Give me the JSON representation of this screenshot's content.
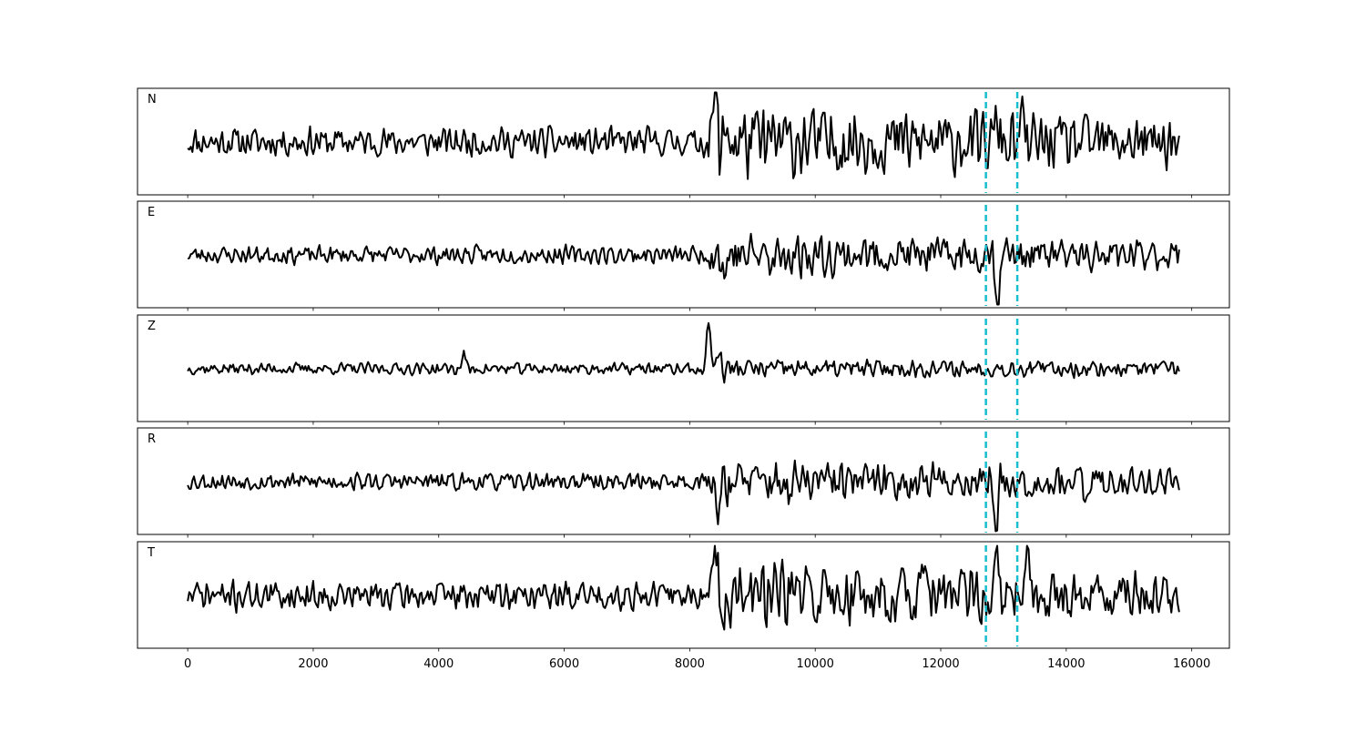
{
  "chart_data": {
    "type": "line",
    "panels": [
      {
        "label": "N",
        "seed": 11,
        "base_amp": 0.2,
        "burst_amp": 0.8,
        "ylim": [
          -1,
          1
        ],
        "events": [
          {
            "x": 8400,
            "amp": 1.0
          },
          {
            "x": 8600,
            "amp": 0.4
          },
          {
            "x": 12900,
            "amp": 0.45
          },
          {
            "x": 13300,
            "amp": 0.4
          }
        ]
      },
      {
        "label": "E",
        "seed": 23,
        "base_amp": 0.12,
        "burst_amp": 0.45,
        "ylim": [
          -1,
          1
        ],
        "events": [
          {
            "x": 8550,
            "amp": 0.45
          },
          {
            "x": 9300,
            "amp": 0.35
          },
          {
            "x": 12900,
            "amp": 1.0
          },
          {
            "x": 14400,
            "amp": 0.4
          }
        ]
      },
      {
        "label": "Z",
        "seed": 37,
        "base_amp": 0.08,
        "burst_amp": 0.18,
        "ylim": [
          -1,
          1
        ],
        "events": [
          {
            "x": 4400,
            "amp": 0.3
          },
          {
            "x": 8300,
            "amp": 1.0
          },
          {
            "x": 8450,
            "amp": 0.45
          }
        ]
      },
      {
        "label": "R",
        "seed": 53,
        "base_amp": 0.12,
        "burst_amp": 0.45,
        "ylim": [
          -1,
          1
        ],
        "events": [
          {
            "x": 8450,
            "amp": 0.5
          },
          {
            "x": 9600,
            "amp": 0.4
          },
          {
            "x": 12880,
            "amp": 1.0
          },
          {
            "x": 14300,
            "amp": 0.45
          }
        ]
      },
      {
        "label": "T",
        "seed": 71,
        "base_amp": 0.2,
        "burst_amp": 0.7,
        "ylim": [
          -1,
          1
        ],
        "events": [
          {
            "x": 8420,
            "amp": 1.0
          },
          {
            "x": 12900,
            "amp": 0.5
          },
          {
            "x": 13380,
            "amp": 0.75
          },
          {
            "x": 11700,
            "amp": 0.35
          }
        ]
      }
    ],
    "x_range": [
      0,
      15800
    ],
    "sample_step": 25,
    "xlim": [
      -800,
      16600
    ],
    "x_ticks": [
      0,
      2000,
      4000,
      6000,
      8000,
      10000,
      12000,
      14000,
      16000
    ],
    "x_tick_labels": [
      "0",
      "2000",
      "4000",
      "6000",
      "8000",
      "10000",
      "12000",
      "14000",
      "16000"
    ],
    "markers": [
      {
        "x": 12720,
        "color": "#17becf",
        "style": "dashed"
      },
      {
        "x": 13220,
        "color": "#17becf",
        "style": "dashed"
      }
    ],
    "line_color": "#000000",
    "grid": false,
    "title": "",
    "xlabel": "",
    "ylabel": ""
  }
}
